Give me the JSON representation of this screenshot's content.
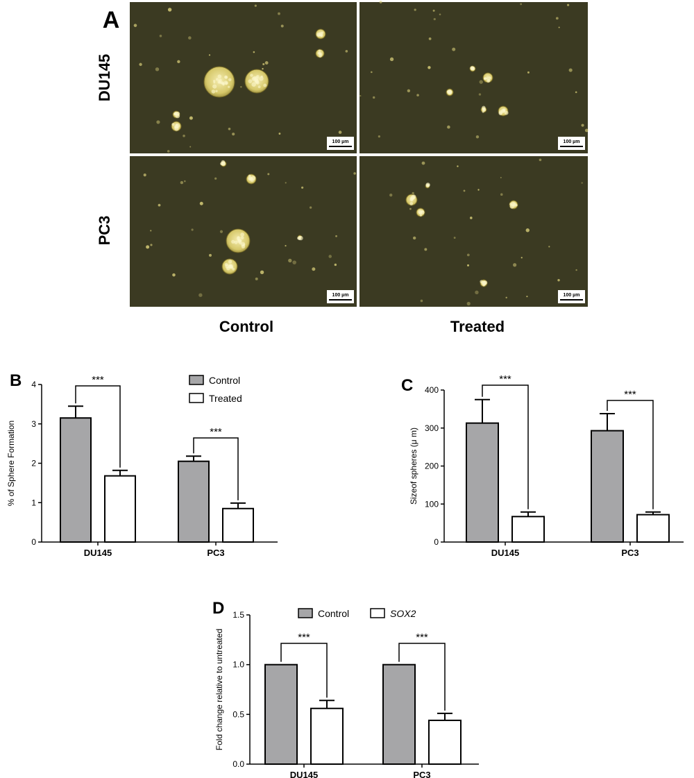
{
  "panel_a": {
    "letter": "A",
    "row_labels": [
      "DU145",
      "PC3"
    ],
    "col_labels": [
      "Control",
      "Treated"
    ],
    "scale_bar_label": "100 µm"
  },
  "colors": {
    "control": "#a6a6a8",
    "treated": "#ffffff",
    "micrograph_bg": "#3b3a22",
    "cell": "#d9cf7a"
  },
  "chart_data": [
    {
      "panel": "B",
      "type": "bar",
      "categories": [
        "DU145",
        "PC3"
      ],
      "series": [
        {
          "name": "Control",
          "values": [
            3.15,
            2.05
          ],
          "errors": [
            0.3,
            0.13
          ]
        },
        {
          "name": "Treated",
          "values": [
            1.68,
            0.85
          ],
          "errors": [
            0.14,
            0.14
          ]
        }
      ],
      "significance": [
        "***",
        "***"
      ],
      "title": "",
      "xlabel": "",
      "ylabel": "% of Sphere Formation",
      "ylim": [
        0,
        4
      ],
      "yticks": [
        "0",
        "1",
        "2",
        "3",
        "4"
      ],
      "grid": false,
      "legend": "top-right"
    },
    {
      "panel": "C",
      "type": "bar",
      "categories": [
        "DU145",
        "PC3"
      ],
      "series": [
        {
          "name": "",
          "values": [
            313,
            293
          ],
          "errors": [
            62,
            45
          ]
        },
        {
          "name": "",
          "values": [
            67,
            72
          ],
          "errors": [
            12,
            7
          ]
        }
      ],
      "significance": [
        "***",
        "***"
      ],
      "title": "",
      "xlabel": "",
      "ylabel": "Sizeof spheres (μ m)",
      "ylim": [
        0,
        400
      ],
      "yticks": [
        "0",
        "100",
        "200",
        "300",
        "400"
      ],
      "grid": false,
      "legend": "none"
    },
    {
      "panel": "D",
      "type": "bar",
      "categories": [
        "DU145",
        "PC3"
      ],
      "series": [
        {
          "name": "Control",
          "values": [
            1.0,
            1.0
          ],
          "errors": [
            0,
            0
          ]
        },
        {
          "name": "SOX2",
          "values": [
            0.56,
            0.44
          ],
          "errors": [
            0.08,
            0.07
          ]
        }
      ],
      "significance": [
        "***",
        "***"
      ],
      "title": "",
      "xlabel": "",
      "ylabel": "Fold change relative to untreated",
      "ylim": [
        0,
        1.5
      ],
      "yticks": [
        "0.0",
        "0.5",
        "1.0",
        "1.5"
      ],
      "grid": false,
      "legend": "top"
    }
  ]
}
